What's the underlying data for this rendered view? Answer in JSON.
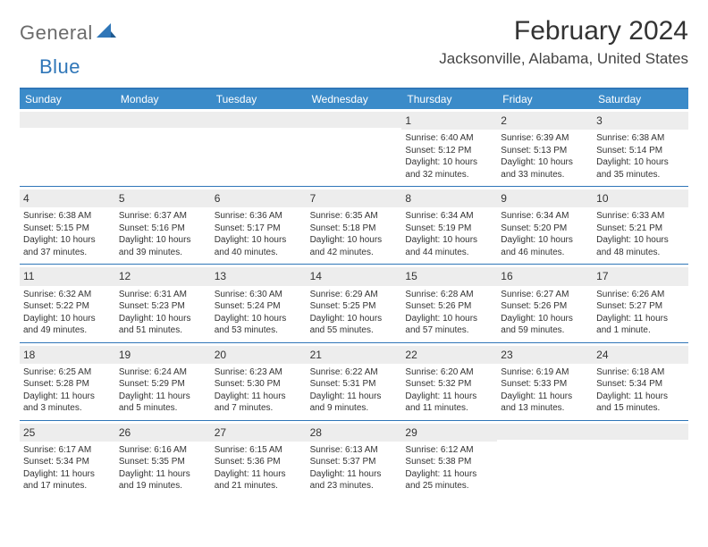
{
  "logo": {
    "general": "General",
    "blue": "Blue"
  },
  "title": "February 2024",
  "location": "Jacksonville, Alabama, United States",
  "styling": {
    "page_bg": "#ffffff",
    "accent": "#2f76b8",
    "header_bar": "#3b8bc9",
    "dow_text": "#ffffff",
    "daynum_bg": "#ededed",
    "text_color": "#333333",
    "title_fontsize": 30,
    "location_fontsize": 17,
    "dow_fontsize": 12,
    "cell_fontsize": 10,
    "grid_cols": 7,
    "grid_rows": 5,
    "rule_color": "#2f76b8"
  },
  "dow": [
    "Sunday",
    "Monday",
    "Tuesday",
    "Wednesday",
    "Thursday",
    "Friday",
    "Saturday"
  ],
  "weeks": [
    [
      {
        "n": "",
        "sr": "",
        "ss": "",
        "dl": ""
      },
      {
        "n": "",
        "sr": "",
        "ss": "",
        "dl": ""
      },
      {
        "n": "",
        "sr": "",
        "ss": "",
        "dl": ""
      },
      {
        "n": "",
        "sr": "",
        "ss": "",
        "dl": ""
      },
      {
        "n": "1",
        "sr": "Sunrise: 6:40 AM",
        "ss": "Sunset: 5:12 PM",
        "dl": "Daylight: 10 hours and 32 minutes."
      },
      {
        "n": "2",
        "sr": "Sunrise: 6:39 AM",
        "ss": "Sunset: 5:13 PM",
        "dl": "Daylight: 10 hours and 33 minutes."
      },
      {
        "n": "3",
        "sr": "Sunrise: 6:38 AM",
        "ss": "Sunset: 5:14 PM",
        "dl": "Daylight: 10 hours and 35 minutes."
      }
    ],
    [
      {
        "n": "4",
        "sr": "Sunrise: 6:38 AM",
        "ss": "Sunset: 5:15 PM",
        "dl": "Daylight: 10 hours and 37 minutes."
      },
      {
        "n": "5",
        "sr": "Sunrise: 6:37 AM",
        "ss": "Sunset: 5:16 PM",
        "dl": "Daylight: 10 hours and 39 minutes."
      },
      {
        "n": "6",
        "sr": "Sunrise: 6:36 AM",
        "ss": "Sunset: 5:17 PM",
        "dl": "Daylight: 10 hours and 40 minutes."
      },
      {
        "n": "7",
        "sr": "Sunrise: 6:35 AM",
        "ss": "Sunset: 5:18 PM",
        "dl": "Daylight: 10 hours and 42 minutes."
      },
      {
        "n": "8",
        "sr": "Sunrise: 6:34 AM",
        "ss": "Sunset: 5:19 PM",
        "dl": "Daylight: 10 hours and 44 minutes."
      },
      {
        "n": "9",
        "sr": "Sunrise: 6:34 AM",
        "ss": "Sunset: 5:20 PM",
        "dl": "Daylight: 10 hours and 46 minutes."
      },
      {
        "n": "10",
        "sr": "Sunrise: 6:33 AM",
        "ss": "Sunset: 5:21 PM",
        "dl": "Daylight: 10 hours and 48 minutes."
      }
    ],
    [
      {
        "n": "11",
        "sr": "Sunrise: 6:32 AM",
        "ss": "Sunset: 5:22 PM",
        "dl": "Daylight: 10 hours and 49 minutes."
      },
      {
        "n": "12",
        "sr": "Sunrise: 6:31 AM",
        "ss": "Sunset: 5:23 PM",
        "dl": "Daylight: 10 hours and 51 minutes."
      },
      {
        "n": "13",
        "sr": "Sunrise: 6:30 AM",
        "ss": "Sunset: 5:24 PM",
        "dl": "Daylight: 10 hours and 53 minutes."
      },
      {
        "n": "14",
        "sr": "Sunrise: 6:29 AM",
        "ss": "Sunset: 5:25 PM",
        "dl": "Daylight: 10 hours and 55 minutes."
      },
      {
        "n": "15",
        "sr": "Sunrise: 6:28 AM",
        "ss": "Sunset: 5:26 PM",
        "dl": "Daylight: 10 hours and 57 minutes."
      },
      {
        "n": "16",
        "sr": "Sunrise: 6:27 AM",
        "ss": "Sunset: 5:26 PM",
        "dl": "Daylight: 10 hours and 59 minutes."
      },
      {
        "n": "17",
        "sr": "Sunrise: 6:26 AM",
        "ss": "Sunset: 5:27 PM",
        "dl": "Daylight: 11 hours and 1 minute."
      }
    ],
    [
      {
        "n": "18",
        "sr": "Sunrise: 6:25 AM",
        "ss": "Sunset: 5:28 PM",
        "dl": "Daylight: 11 hours and 3 minutes."
      },
      {
        "n": "19",
        "sr": "Sunrise: 6:24 AM",
        "ss": "Sunset: 5:29 PM",
        "dl": "Daylight: 11 hours and 5 minutes."
      },
      {
        "n": "20",
        "sr": "Sunrise: 6:23 AM",
        "ss": "Sunset: 5:30 PM",
        "dl": "Daylight: 11 hours and 7 minutes."
      },
      {
        "n": "21",
        "sr": "Sunrise: 6:22 AM",
        "ss": "Sunset: 5:31 PM",
        "dl": "Daylight: 11 hours and 9 minutes."
      },
      {
        "n": "22",
        "sr": "Sunrise: 6:20 AM",
        "ss": "Sunset: 5:32 PM",
        "dl": "Daylight: 11 hours and 11 minutes."
      },
      {
        "n": "23",
        "sr": "Sunrise: 6:19 AM",
        "ss": "Sunset: 5:33 PM",
        "dl": "Daylight: 11 hours and 13 minutes."
      },
      {
        "n": "24",
        "sr": "Sunrise: 6:18 AM",
        "ss": "Sunset: 5:34 PM",
        "dl": "Daylight: 11 hours and 15 minutes."
      }
    ],
    [
      {
        "n": "25",
        "sr": "Sunrise: 6:17 AM",
        "ss": "Sunset: 5:34 PM",
        "dl": "Daylight: 11 hours and 17 minutes."
      },
      {
        "n": "26",
        "sr": "Sunrise: 6:16 AM",
        "ss": "Sunset: 5:35 PM",
        "dl": "Daylight: 11 hours and 19 minutes."
      },
      {
        "n": "27",
        "sr": "Sunrise: 6:15 AM",
        "ss": "Sunset: 5:36 PM",
        "dl": "Daylight: 11 hours and 21 minutes."
      },
      {
        "n": "28",
        "sr": "Sunrise: 6:13 AM",
        "ss": "Sunset: 5:37 PM",
        "dl": "Daylight: 11 hours and 23 minutes."
      },
      {
        "n": "29",
        "sr": "Sunrise: 6:12 AM",
        "ss": "Sunset: 5:38 PM",
        "dl": "Daylight: 11 hours and 25 minutes."
      },
      {
        "n": "",
        "sr": "",
        "ss": "",
        "dl": ""
      },
      {
        "n": "",
        "sr": "",
        "ss": "",
        "dl": ""
      }
    ]
  ]
}
